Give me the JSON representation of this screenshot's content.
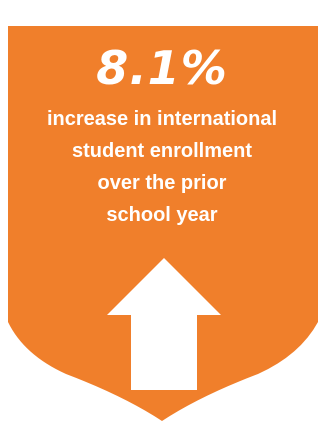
{
  "badge": {
    "shape": "shield",
    "fill_color": "#f07f2b",
    "text_color": "#ffffff",
    "stat_value": "8.1%",
    "description_lines": [
      "increase in international",
      "student enrollment",
      "over the prior",
      "school year"
    ],
    "icon": "arrow-up-icon"
  }
}
